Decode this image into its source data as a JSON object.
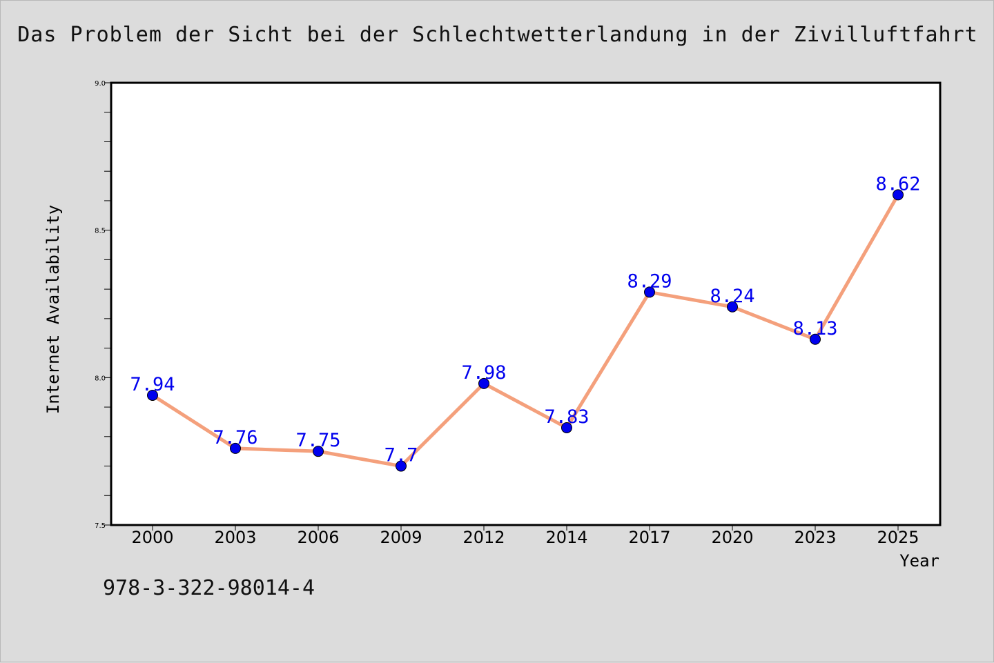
{
  "chart_data": {
    "type": "line",
    "title": "Das Problem der Sicht bei der Schlechtwetterlandung in der Zivilluftfahrt",
    "xlabel": "Year",
    "ylabel": "Internet Availability",
    "categories": [
      "2000",
      "2003",
      "2006",
      "2009",
      "2012",
      "2014",
      "2017",
      "2020",
      "2023",
      "2025"
    ],
    "series": [
      {
        "values": [
          7.94,
          7.76,
          7.75,
          7.7,
          7.98,
          7.83,
          8.29,
          8.24,
          8.13,
          8.62
        ],
        "labels": [
          "7.94",
          "7.76",
          "7.75",
          "7.7",
          "7.98",
          "7.83",
          "8.29",
          "8.24",
          "8.13",
          "8.62"
        ],
        "line_color": "#f4a07c",
        "marker_color": "#0000ee",
        "label_color": "#0000ee"
      }
    ],
    "ylim": [
      7.5,
      9.0
    ],
    "yticks": [
      "7.5",
      "8.0",
      "8.5",
      "9.0"
    ],
    "grid": false,
    "legend": "none"
  },
  "footer": {
    "isbn": "978-3-322-98014-4"
  }
}
